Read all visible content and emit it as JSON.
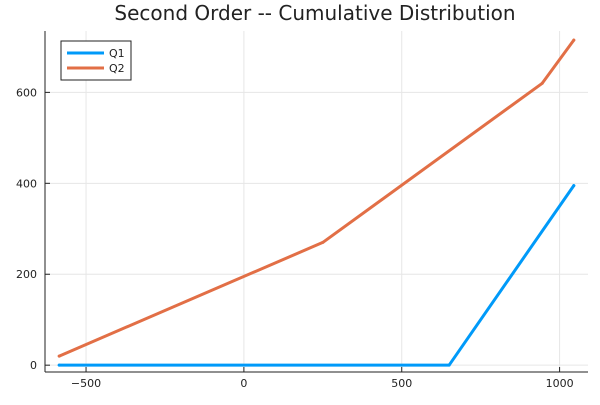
{
  "chart_data": {
    "type": "line",
    "title": "Second Order -- Cumulative Distribution",
    "xlabel": "",
    "ylabel": "",
    "xlim": [
      -630,
      1090
    ],
    "ylim": [
      -15,
      735
    ],
    "xticks": [
      -500,
      0,
      500,
      1000
    ],
    "xtick_labels": [
      "−500",
      "0",
      "500",
      "1000"
    ],
    "yticks": [
      0,
      200,
      400,
      600
    ],
    "ytick_labels": [
      "0",
      "200",
      "400",
      "600"
    ],
    "grid": true,
    "legend_position": "top-left",
    "series": [
      {
        "name": "Q1",
        "color": "#009AF9",
        "x": [
          -585,
          650,
          1045
        ],
        "y": [
          0,
          0,
          395
        ]
      },
      {
        "name": "Q2",
        "color": "#E26F46",
        "x": [
          -585,
          250,
          945,
          1045
        ],
        "y": [
          20,
          270,
          620,
          715
        ]
      }
    ]
  }
}
